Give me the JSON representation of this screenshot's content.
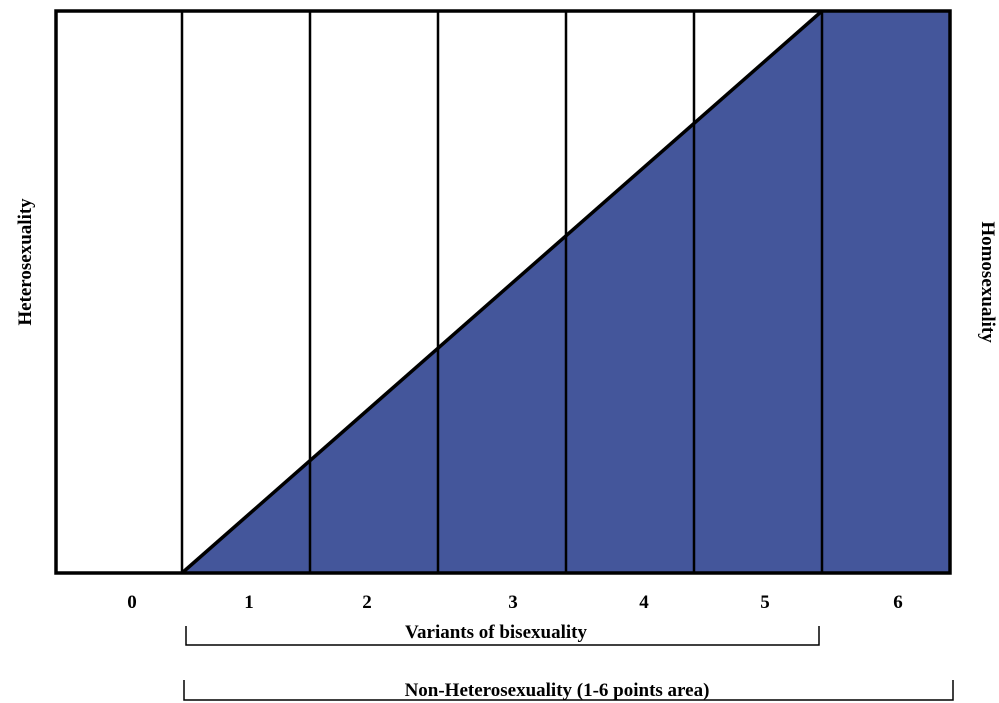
{
  "diagram": {
    "left_label": "Heterosexuality",
    "right_label": "Homosexuality",
    "categories": [
      "0",
      "1",
      "2",
      "3",
      "4",
      "5",
      "6"
    ],
    "fill_color": "#44569b",
    "line_color": "#000000",
    "background_color": "#ffffff",
    "brackets": [
      {
        "label": "Variants of bisexuality",
        "from_category": "1",
        "to_category": "5"
      },
      {
        "label": "Non-Heterosexuality (1-6 points area)",
        "from_category": "1",
        "to_category": "6"
      }
    ]
  }
}
